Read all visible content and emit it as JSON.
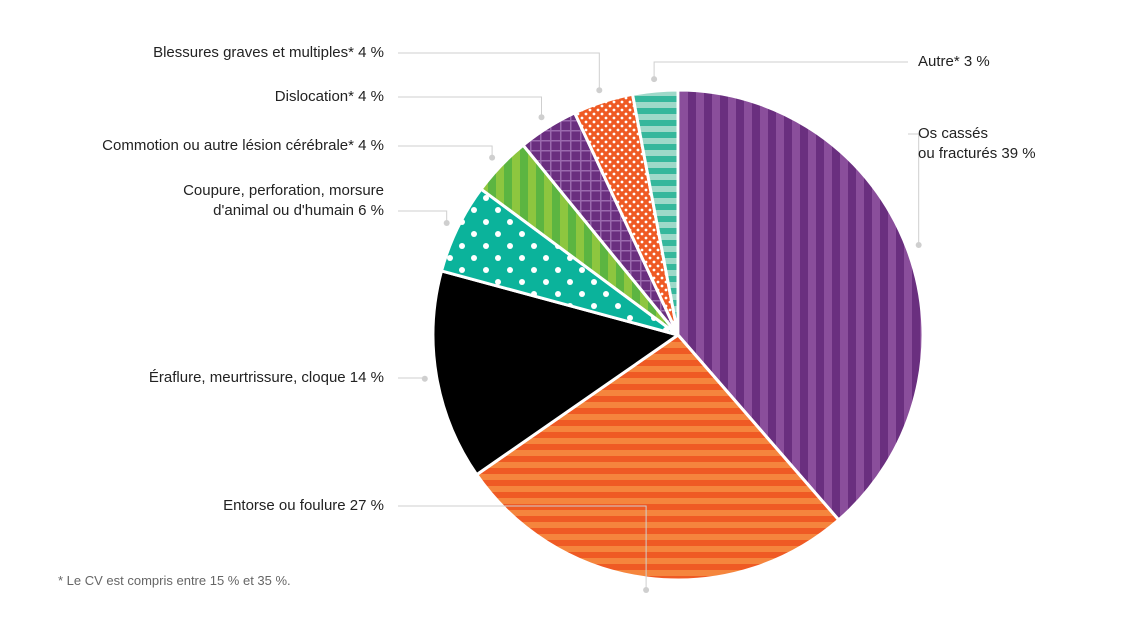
{
  "chart_data": {
    "type": "pie",
    "start_angle_deg": 0,
    "direction": "clockwise",
    "slices": [
      {
        "lines": [
          "Os cassés",
          "ou fracturés 39 %"
        ],
        "value": 39,
        "colors": [
          "#6a2f7f",
          "#8a4e9b"
        ],
        "pattern": "vstripes",
        "label_side": "right"
      },
      {
        "lines": [
          "Entorse ou foulure 27 %"
        ],
        "value": 27,
        "colors": [
          "#ef5a24",
          "#f5853d"
        ],
        "pattern": "hstripes",
        "label_side": "left"
      },
      {
        "lines": [
          "Éraflure, meurtrissure, cloque 14 %"
        ],
        "value": 14,
        "colors": [
          "#000000"
        ],
        "pattern": "solid",
        "label_side": "left"
      },
      {
        "lines": [
          "Coupure, perforation, morsure",
          "d'animal ou d'humain 6 %"
        ],
        "value": 6,
        "colors": [
          "#0bb39b",
          "#ffffff"
        ],
        "pattern": "dots",
        "label_side": "left"
      },
      {
        "lines": [
          "Commotion ou autre lésion cérébrale* 4 %"
        ],
        "value": 4,
        "colors": [
          "#8dc63f",
          "#5cb541"
        ],
        "pattern": "vstripes",
        "label_side": "left"
      },
      {
        "lines": [
          "Dislocation* 4 %"
        ],
        "value": 4,
        "colors": [
          "#6a2f7f",
          "#9a6aae"
        ],
        "pattern": "grid",
        "label_side": "left"
      },
      {
        "lines": [
          "Blessures graves et multiples* 4 %"
        ],
        "value": 4,
        "colors": [
          "#ef5a24",
          "#ffffff"
        ],
        "pattern": "smalldots",
        "label_side": "left"
      },
      {
        "lines": [
          "Autre* 3 %"
        ],
        "value": 3,
        "colors": [
          "#35b79c",
          "#9ed9c9"
        ],
        "pattern": "hstripes",
        "label_side": "right"
      }
    ]
  },
  "footnote": "* Le CV est compris entre 15 % et 35 %."
}
